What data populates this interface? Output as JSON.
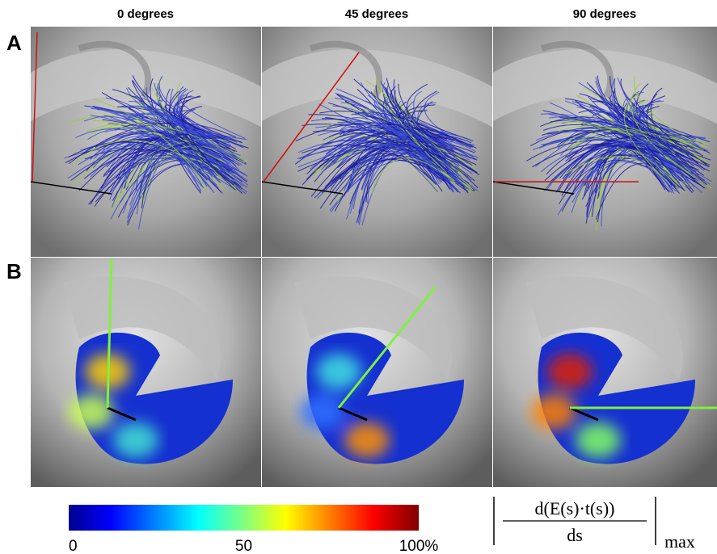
{
  "columns": [
    "0 degrees",
    "45 degrees",
    "90 degrees"
  ],
  "rows": [
    "A",
    "B"
  ],
  "colorbar": {
    "lim": [
      0,
      100
    ],
    "ticks": [
      0,
      50,
      {
        "value": 100,
        "label": "100%"
      }
    ]
  },
  "formula": {
    "numerator": "d(E(s)·t(s))",
    "denominator": "ds",
    "subscript": "max"
  }
}
